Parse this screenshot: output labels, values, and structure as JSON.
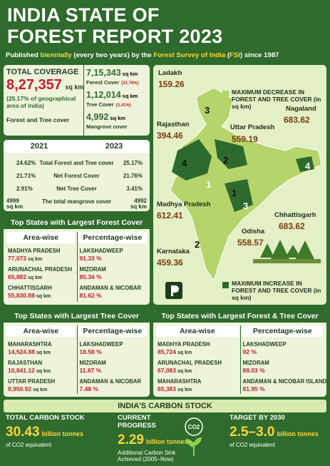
{
  "header": {
    "title_lines": [
      "INDIA STATE OF",
      "FOREST REPORT 2023"
    ],
    "subtitle": [
      "Published ",
      "biennially",
      " (every two years) by the ",
      "Forest Survey of India",
      " (",
      "FSI",
      ") since 1987"
    ]
  },
  "total_coverage": {
    "label": "TOTAL COVERAGE",
    "value": "8,27,357",
    "unit": "sq km",
    "note": "(25.17% of geographical area of India)",
    "caption": "Forest and Tree cover",
    "stats": [
      {
        "value": "7,15,343",
        "unit": "sq km",
        "label": "Forest Cover",
        "pct": "(21.76%)"
      },
      {
        "value": "1,12,014",
        "unit": "sq km",
        "label": "Tree Cover",
        "pct": "(3.41%)"
      },
      {
        "value": "4,992",
        "unit": "sq km",
        "label": "Mangrove cover"
      }
    ]
  },
  "comparison": {
    "years": [
      "2021",
      "2023"
    ],
    "rows": [
      {
        "left": "24.62%",
        "label": "Total Forest and Tree cover",
        "right": "25.17%"
      },
      {
        "left": "21.71%",
        "label": "Net Forest Cover",
        "right": "21.76%"
      },
      {
        "left": "2.91%",
        "label": "Net Tree Cover",
        "right": "3.41%"
      },
      {
        "left": "4999 sq km",
        "label": "The total mangrove cover",
        "right": "4992 sq km"
      }
    ]
  },
  "map": {
    "legend_decrease": "MAXIMUM DECREASE IN FOREST AND TREE COVER (in sq km)",
    "legend_increase": "MAXIMUM INCREASE IN FOREST AND TREE COVER (in sq km)",
    "states": [
      {
        "name": "Ladakh",
        "value": "159.26",
        "rank": "3"
      },
      {
        "name": "Nagaland",
        "value": "683.62",
        "rank": "4"
      },
      {
        "name": "Rajasthan",
        "value": "394.46",
        "rank": "4"
      },
      {
        "name": "Uttar Pradesh",
        "value": "559.19",
        "rank": "2"
      },
      {
        "name": "Madhya Pradesh",
        "value": "612.41",
        "rank": "1"
      },
      {
        "name": "Chhattisgarh",
        "value": "683.62",
        "rank": "1"
      },
      {
        "name": "Odisha",
        "value": "558.57",
        "rank": "3"
      },
      {
        "name": "Karnataka",
        "value": "459.36",
        "rank": "2"
      }
    ]
  },
  "forest_cover": {
    "title": "Top States with Largest Forest Cover",
    "headers": [
      "Area-wise",
      "Percentage-wise"
    ],
    "rows": [
      {
        "area_name": "MADHYA PRADESH",
        "area_value": "77,073",
        "area_unit": "sq km",
        "pct_name": "LAKSHADWEEP",
        "pct_value": "91.33 %"
      },
      {
        "area_name": "ARUNACHAL PRADESH",
        "area_value": "65,882",
        "area_unit": "sq km",
        "pct_name": "MIZORAM",
        "pct_value": "85.34 %"
      },
      {
        "area_name": "CHHATTISGARH",
        "area_value": "55,830.88",
        "area_unit": "sq km",
        "pct_name": "ANDAMAN & NICOBAR",
        "pct_value": "81.62 %"
      }
    ]
  },
  "tree_cover": {
    "title": "Top States with Largest Tree Cover",
    "headers": [
      "Area-wise",
      "Percentage-wise"
    ],
    "rows": [
      {
        "area_name": "MAHARASHTRA",
        "area_value": "14,524.88",
        "area_unit": "sq km",
        "pct_name": "LAKSHADWEEP",
        "pct_value": "18.58 %"
      },
      {
        "area_name": "RAJASTHAN",
        "area_value": "10,841.12",
        "area_unit": "sq km",
        "pct_name": "MIZORAM",
        "pct_value": "11.87 %"
      },
      {
        "area_name": "UTTAR PRADESH",
        "area_value": "8,950.92",
        "area_unit": "sq km",
        "pct_name": "ANDAMAN & NICOBAR",
        "pct_value": "7.48 %"
      }
    ]
  },
  "forest_tree_cover": {
    "title": "Top States with Largest Forest & Tree Cover",
    "headers": [
      "Area-wise",
      "Percentage-wise"
    ],
    "rows": [
      {
        "area_name": "MADHYA PRADESH",
        "area_value": "85,724",
        "area_unit": "sq km",
        "pct_name": "LAKSHADWEEP",
        "pct_value": "92 %"
      },
      {
        "area_name": "ARUNACHAL PRADESH",
        "area_value": "67,083",
        "area_unit": "sq km",
        "pct_name": "MIZORAM",
        "pct_value": "88.03 %"
      },
      {
        "area_name": "MAHARASHTRA",
        "area_value": "65,383",
        "area_unit": "sq km",
        "pct_name": "ANDAMAN & NICOBAR ISLAND",
        "pct_value": "81.95 %"
      }
    ]
  },
  "carbon": {
    "title": "INDIA'S CARBON STOCK",
    "icon_label": "CO2",
    "cards": [
      {
        "label": "TOTAL CARBON STOCK",
        "value": "30.43",
        "unit": "billion tonnes",
        "note": "of CO2 equivalent"
      },
      {
        "label": "CURRENT PROGRESS",
        "value": "2.29",
        "unit": "billion tonnes",
        "note": "Additional Carbon Sink Achieved (2005–Now)"
      },
      {
        "label": "TARGET BY 2030",
        "value": "2.5–3.0",
        "unit": "billion tonnes",
        "note": "of CO2 equivalent"
      }
    ]
  }
}
